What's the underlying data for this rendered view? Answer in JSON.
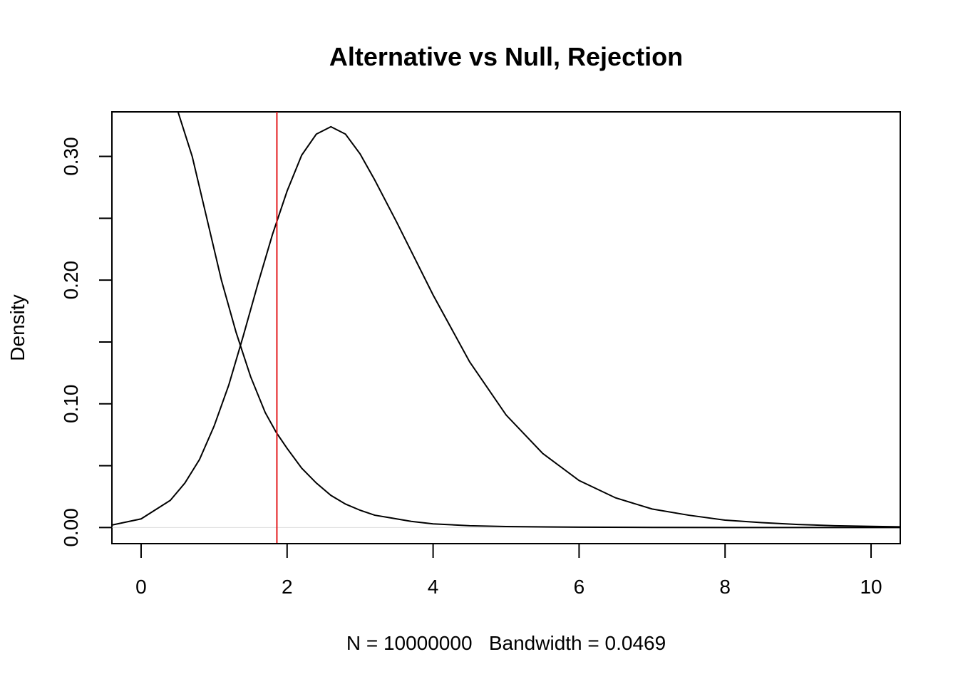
{
  "chart_data": {
    "type": "line",
    "title": "Alternative vs Null, Rejection",
    "xlabel": "N = 10000000   Bandwidth = 0.0469",
    "ylabel": "Density",
    "xlim": [
      -0.4,
      10.4
    ],
    "ylim": [
      -0.013,
      0.336
    ],
    "x_ticks": [
      0,
      2,
      4,
      6,
      8,
      10
    ],
    "x_tick_labels": [
      "0",
      "2",
      "4",
      "6",
      "8",
      "10"
    ],
    "y_ticks": [
      0.0,
      0.05,
      0.1,
      0.15,
      0.2,
      0.25,
      0.3
    ],
    "y_tick_labels": [
      "0.00",
      "",
      "0.10",
      "",
      "0.20",
      "",
      "0.30"
    ],
    "grid": false,
    "series": [
      {
        "color": "#000000",
        "x": [
          0.5,
          0.7,
          0.9,
          1.1,
          1.3,
          1.5,
          1.7,
          1.85,
          2.0,
          2.2,
          2.4,
          2.6,
          2.8,
          3.0,
          3.2,
          3.4,
          3.7,
          4.0,
          4.5,
          5.0,
          6.0,
          7.0,
          8.0,
          10.4
        ],
        "y": [
          0.337,
          0.3,
          0.25,
          0.2,
          0.158,
          0.122,
          0.093,
          0.077,
          0.064,
          0.048,
          0.036,
          0.026,
          0.019,
          0.014,
          0.01,
          0.008,
          0.005,
          0.003,
          0.0015,
          0.0008,
          0.0003,
          0.0001,
          0.0,
          0.0
        ]
      },
      {
        "color": "#000000",
        "x": [
          -0.4,
          0.0,
          0.4,
          0.6,
          0.8,
          1.0,
          1.2,
          1.4,
          1.6,
          1.8,
          2.0,
          2.2,
          2.4,
          2.6,
          2.8,
          3.0,
          3.2,
          3.5,
          4.0,
          4.5,
          5.0,
          5.5,
          6.0,
          6.5,
          7.0,
          7.5,
          8.0,
          8.5,
          9.0,
          9.5,
          10.0,
          10.4
        ],
        "y": [
          0.002,
          0.007,
          0.022,
          0.036,
          0.055,
          0.082,
          0.115,
          0.155,
          0.197,
          0.237,
          0.272,
          0.301,
          0.318,
          0.324,
          0.318,
          0.302,
          0.281,
          0.247,
          0.188,
          0.134,
          0.091,
          0.06,
          0.038,
          0.024,
          0.015,
          0.01,
          0.006,
          0.004,
          0.0025,
          0.0015,
          0.001,
          0.0006
        ]
      }
    ],
    "vlines": [
      {
        "x": 1.86,
        "color": "#e41a1c"
      }
    ]
  }
}
